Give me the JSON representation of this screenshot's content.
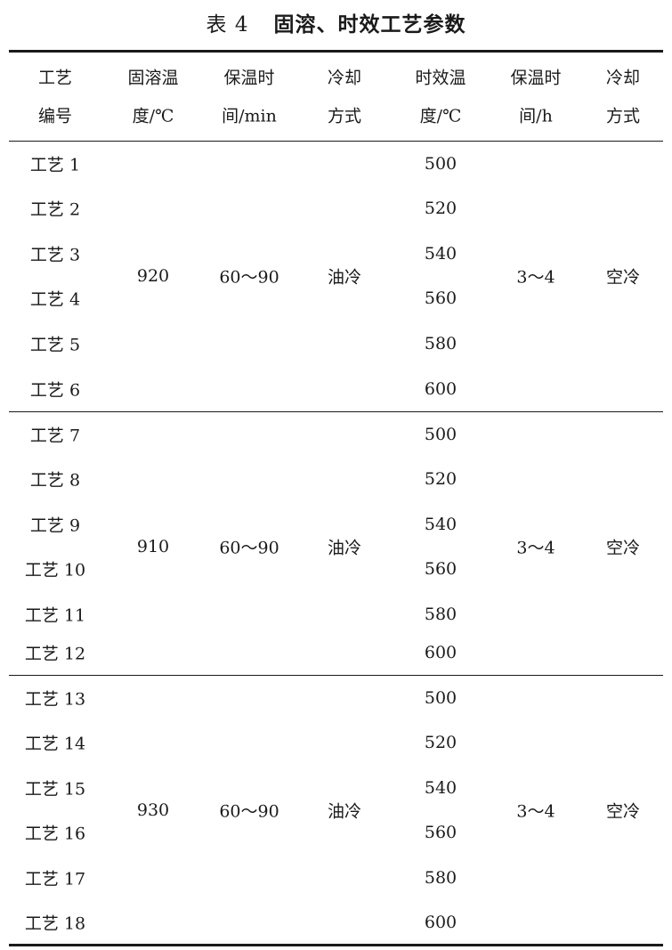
{
  "title": {
    "label": "表 4",
    "text": "固溶、时效工艺参数"
  },
  "table": {
    "headers": [
      [
        "工艺",
        "编号"
      ],
      [
        "固溶温",
        "度/℃"
      ],
      [
        "保温时",
        "间/min"
      ],
      [
        "冷却",
        "方式"
      ],
      [
        "时效温",
        "度/℃"
      ],
      [
        "保温时",
        "间/h"
      ],
      [
        "冷却",
        "方式"
      ]
    ],
    "groups": [
      {
        "processes": [
          "工艺 1",
          "工艺 2",
          "工艺 3",
          "工艺 4",
          "工艺 5",
          "工艺 6"
        ],
        "solution_temp": "920",
        "solution_hold": "60～90",
        "solution_cooling": "油冷",
        "aging_temps": [
          "500",
          "520",
          "540",
          "560",
          "580",
          "600"
        ],
        "aging_hold": "3～4",
        "aging_cooling": "空冷"
      },
      {
        "processes": [
          "工艺 7",
          "工艺 8",
          "工艺 9",
          "工艺 10",
          "工艺 11",
          "工艺 12"
        ],
        "solution_temp": "910",
        "solution_hold": "60～90",
        "solution_cooling": "油冷",
        "aging_temps": [
          "500",
          "520",
          "540",
          "560",
          "580",
          "600"
        ],
        "aging_hold": "3～4",
        "aging_cooling": "空冷"
      },
      {
        "processes": [
          "工艺 13",
          "工艺 14",
          "工艺 15",
          "工艺 16",
          "工艺 17",
          "工艺 18"
        ],
        "solution_temp": "930",
        "solution_hold": "60～90",
        "solution_cooling": "油冷",
        "aging_temps": [
          "500",
          "520",
          "540",
          "560",
          "580",
          "600"
        ],
        "aging_hold": "3～4",
        "aging_cooling": "空冷"
      }
    ]
  }
}
